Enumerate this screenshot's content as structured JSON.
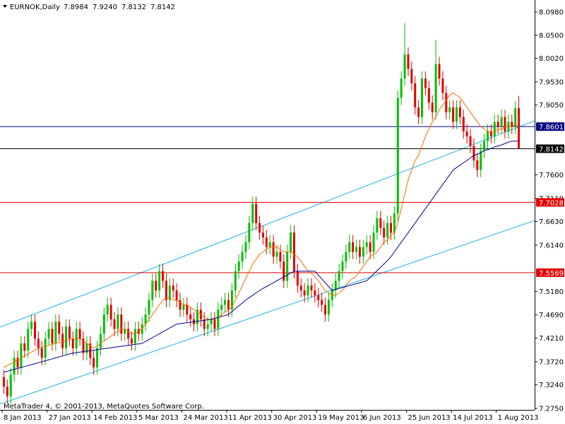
{
  "chart_data": {
    "type": "candlestick",
    "symbol": "EURNOK,Daily",
    "header_labels": [
      "7.8984",
      "7.9240",
      "7.8132",
      "7.8142"
    ],
    "footer": "MetaTrader 4, © 2001-2013, MetaQuotes Software Corp.",
    "up_color": "#00c000",
    "down_color": "#e00000",
    "grid": false,
    "categories": [
      "8 Jan 2013",
      null,
      null,
      null,
      null,
      null,
      null,
      null,
      null,
      null,
      null,
      null,
      null,
      "27 Jan 2013",
      null,
      null,
      null,
      null,
      null,
      null,
      null,
      null,
      null,
      null,
      null,
      null,
      "14 Feb 2013",
      null,
      null,
      null,
      null,
      null,
      null,
      null,
      null,
      null,
      null,
      null,
      null,
      "5 Mar 2013",
      null,
      null,
      null,
      null,
      null,
      null,
      null,
      null,
      null,
      null,
      null,
      null,
      "24 Mar 2013",
      null,
      null,
      null,
      null,
      null,
      null,
      null,
      null,
      null,
      null,
      null,
      null,
      "11 Apr 2013",
      null,
      null,
      null,
      null,
      null,
      null,
      null,
      null,
      null,
      null,
      null,
      null,
      "30 Apr 2013",
      null,
      null,
      null,
      null,
      null,
      null,
      null,
      null,
      null,
      null,
      null,
      null,
      "19 May 2013",
      null,
      null,
      null,
      null,
      null,
      null,
      null,
      null,
      null,
      null,
      null,
      null,
      "6 Jun 2013",
      null,
      null,
      null,
      null,
      null,
      null,
      null,
      null,
      null,
      null,
      null,
      null,
      "25 Jun 2013",
      null,
      null,
      null,
      null,
      null,
      null,
      null,
      null,
      null,
      null,
      null,
      null,
      "14 Jul 2013",
      null,
      null,
      null,
      null,
      null,
      null,
      null,
      null,
      null,
      null,
      null,
      null,
      "1 Aug 2013",
      null,
      null,
      null,
      null,
      null,
      null
    ],
    "open": [
      7.34,
      7.32,
      7.3,
      7.345,
      7.38,
      7.36,
      7.41,
      7.395,
      7.44,
      7.455,
      7.42,
      7.4,
      7.38,
      7.42,
      7.44,
      7.41,
      7.455,
      7.43,
      7.4,
      7.445,
      7.42,
      7.4,
      7.44,
      7.42,
      7.39,
      7.41,
      7.38,
      7.36,
      7.4,
      7.43,
      7.47,
      7.49,
      7.46,
      7.44,
      7.47,
      7.43,
      7.44,
      7.42,
      7.41,
      7.44,
      7.43,
      7.45,
      7.47,
      7.5,
      7.54,
      7.52,
      7.56,
      7.54,
      7.5,
      7.53,
      7.52,
      7.5,
      7.48,
      7.49,
      7.47,
      7.46,
      7.45,
      7.48,
      7.46,
      7.44,
      7.45,
      7.46,
      7.44,
      7.48,
      7.49,
      7.5,
      7.48,
      7.52,
      7.56,
      7.58,
      7.6,
      7.62,
      7.66,
      7.7,
      7.66,
      7.64,
      7.63,
      7.61,
      7.62,
      7.59,
      7.6,
      7.58,
      7.54,
      7.6,
      7.64,
      7.56,
      7.53,
      7.52,
      7.51,
      7.53,
      7.52,
      7.51,
      7.5,
      7.49,
      7.47,
      7.5,
      7.52,
      7.54,
      7.56,
      7.58,
      7.6,
      7.62,
      7.6,
      7.61,
      7.59,
      7.61,
      7.62,
      7.6,
      7.64,
      7.67,
      7.65,
      7.63,
      7.66,
      7.64,
      7.68,
      7.92,
      7.96,
      8.01,
      7.98,
      7.95,
      7.9,
      7.88,
      7.96,
      7.94,
      7.91,
      7.89,
      7.99,
      7.96,
      7.93,
      7.89,
      7.9,
      7.87,
      7.9,
      7.88,
      7.85,
      7.84,
      7.82,
      7.79,
      7.77,
      7.81,
      7.83,
      7.85,
      7.84,
      7.87,
      7.86,
      7.88,
      7.85,
      7.87,
      7.86,
      7.8984
    ],
    "high": [
      7.355,
      7.335,
      7.36,
      7.395,
      7.395,
      7.425,
      7.425,
      7.455,
      7.47,
      7.47,
      7.435,
      7.415,
      7.435,
      7.455,
      7.455,
      7.47,
      7.47,
      7.445,
      7.46,
      7.46,
      7.435,
      7.455,
      7.455,
      7.435,
      7.425,
      7.425,
      7.395,
      7.415,
      7.445,
      7.485,
      7.505,
      7.505,
      7.475,
      7.485,
      7.485,
      7.455,
      7.455,
      7.435,
      7.455,
      7.455,
      7.465,
      7.485,
      7.515,
      7.555,
      7.555,
      7.575,
      7.575,
      7.555,
      7.545,
      7.545,
      7.535,
      7.515,
      7.505,
      7.505,
      7.485,
      7.475,
      7.495,
      7.495,
      7.475,
      7.465,
      7.475,
      7.475,
      7.495,
      7.505,
      7.515,
      7.515,
      7.535,
      7.575,
      7.595,
      7.615,
      7.635,
      7.675,
      7.715,
      7.715,
      7.675,
      7.655,
      7.645,
      7.635,
      7.635,
      7.615,
      7.615,
      7.595,
      7.615,
      7.655,
      7.655,
      7.575,
      7.545,
      7.535,
      7.545,
      7.545,
      7.535,
      7.525,
      7.515,
      7.505,
      7.515,
      7.535,
      7.555,
      7.575,
      7.595,
      7.615,
      7.635,
      7.635,
      7.625,
      7.625,
      7.625,
      7.635,
      7.635,
      7.655,
      7.685,
      7.685,
      7.665,
      7.675,
      7.675,
      7.695,
      7.935,
      7.975,
      8.075,
      8.025,
      7.995,
      7.965,
      7.915,
      7.975,
      7.975,
      7.955,
      7.925,
      8.04,
      8.005,
      7.975,
      7.945,
      7.915,
      7.915,
      7.915,
      7.915,
      7.895,
      7.865,
      7.855,
      7.835,
      7.805,
      7.825,
      7.845,
      7.865,
      7.865,
      7.885,
      7.885,
      7.895,
      7.895,
      7.885,
      7.885,
      7.913,
      7.924
    ],
    "low": [
      7.305,
      7.285,
      7.285,
      7.33,
      7.345,
      7.345,
      7.38,
      7.38,
      7.425,
      7.405,
      7.385,
      7.365,
      7.365,
      7.405,
      7.395,
      7.395,
      7.415,
      7.385,
      7.385,
      7.405,
      7.385,
      7.385,
      7.405,
      7.375,
      7.375,
      7.365,
      7.345,
      7.345,
      7.385,
      7.415,
      7.455,
      7.445,
      7.425,
      7.425,
      7.415,
      7.415,
      7.405,
      7.395,
      7.395,
      7.415,
      7.415,
      7.435,
      7.455,
      7.485,
      7.505,
      7.505,
      7.525,
      7.485,
      7.485,
      7.505,
      7.485,
      7.465,
      7.465,
      7.455,
      7.445,
      7.435,
      7.435,
      7.445,
      7.425,
      7.425,
      7.435,
      7.425,
      7.425,
      7.465,
      7.475,
      7.465,
      7.465,
      7.505,
      7.545,
      7.565,
      7.585,
      7.605,
      7.645,
      7.645,
      7.625,
      7.615,
      7.595,
      7.595,
      7.575,
      7.575,
      7.565,
      7.525,
      7.525,
      7.585,
      7.545,
      7.515,
      7.505,
      7.495,
      7.495,
      7.505,
      7.495,
      7.485,
      7.475,
      7.455,
      7.455,
      7.485,
      7.505,
      7.525,
      7.545,
      7.565,
      7.585,
      7.585,
      7.585,
      7.575,
      7.575,
      7.595,
      7.585,
      7.585,
      7.625,
      7.635,
      7.615,
      7.615,
      7.625,
      7.625,
      7.665,
      7.905,
      7.945,
      7.965,
      7.935,
      7.885,
      7.865,
      7.865,
      7.925,
      7.895,
      7.875,
      7.875,
      7.945,
      7.915,
      7.875,
      7.875,
      7.855,
      7.855,
      7.865,
      7.835,
      7.825,
      7.805,
      7.775,
      7.755,
      7.755,
      7.795,
      7.815,
      7.825,
      7.825,
      7.845,
      7.845,
      7.835,
      7.835,
      7.845,
      7.845,
      7.8132
    ],
    "close": [
      7.32,
      7.3,
      7.345,
      7.38,
      7.36,
      7.41,
      7.395,
      7.44,
      7.455,
      7.42,
      7.4,
      7.38,
      7.42,
      7.44,
      7.41,
      7.455,
      7.43,
      7.4,
      7.445,
      7.42,
      7.4,
      7.44,
      7.42,
      7.39,
      7.41,
      7.38,
      7.36,
      7.4,
      7.43,
      7.47,
      7.49,
      7.46,
      7.44,
      7.47,
      7.43,
      7.44,
      7.42,
      7.41,
      7.44,
      7.43,
      7.45,
      7.47,
      7.5,
      7.54,
      7.52,
      7.56,
      7.54,
      7.5,
      7.53,
      7.52,
      7.5,
      7.48,
      7.49,
      7.47,
      7.46,
      7.45,
      7.48,
      7.46,
      7.44,
      7.45,
      7.46,
      7.44,
      7.48,
      7.49,
      7.5,
      7.48,
      7.52,
      7.56,
      7.58,
      7.6,
      7.62,
      7.66,
      7.7,
      7.66,
      7.64,
      7.63,
      7.61,
      7.62,
      7.59,
      7.6,
      7.58,
      7.54,
      7.6,
      7.64,
      7.56,
      7.53,
      7.52,
      7.51,
      7.53,
      7.52,
      7.51,
      7.5,
      7.49,
      7.47,
      7.5,
      7.52,
      7.54,
      7.56,
      7.58,
      7.6,
      7.62,
      7.6,
      7.61,
      7.59,
      7.61,
      7.62,
      7.6,
      7.64,
      7.67,
      7.65,
      7.63,
      7.66,
      7.64,
      7.68,
      7.92,
      7.96,
      8.01,
      7.98,
      7.95,
      7.9,
      7.88,
      7.96,
      7.94,
      7.91,
      7.89,
      7.99,
      7.96,
      7.93,
      7.89,
      7.9,
      7.87,
      7.9,
      7.88,
      7.85,
      7.84,
      7.82,
      7.79,
      7.77,
      7.81,
      7.83,
      7.85,
      7.84,
      7.87,
      7.86,
      7.88,
      7.85,
      7.87,
      7.86,
      7.898,
      7.8142
    ],
    "lines": [
      {
        "color": "#ff6a00",
        "values": [
          7.36,
          7.364,
          7.368,
          7.372,
          7.376,
          7.38,
          7.384,
          7.388,
          7.392,
          7.396,
          7.4,
          7.402,
          7.404,
          7.406,
          7.408,
          7.41,
          7.412,
          7.414,
          7.416,
          7.418,
          7.42,
          7.42,
          7.42,
          7.415,
          7.41,
          7.405,
          7.4,
          7.405,
          7.41,
          7.415,
          7.42,
          7.425,
          7.43,
          7.435,
          7.44,
          7.44,
          7.435,
          7.43,
          7.43,
          7.435,
          7.44,
          7.45,
          7.46,
          7.47,
          7.48,
          7.49,
          7.5,
          7.505,
          7.505,
          7.5,
          7.5,
          7.495,
          7.49,
          7.49,
          7.485,
          7.48,
          7.475,
          7.47,
          7.465,
          7.46,
          7.46,
          7.46,
          7.465,
          7.47,
          7.475,
          7.48,
          7.485,
          7.5,
          7.515,
          7.53,
          7.545,
          7.56,
          7.575,
          7.585,
          7.595,
          7.6,
          7.605,
          7.61,
          7.61,
          7.61,
          7.605,
          7.6,
          7.6,
          7.6,
          7.595,
          7.59,
          7.58,
          7.57,
          7.56,
          7.555,
          7.55,
          7.54,
          7.53,
          7.52,
          7.515,
          7.51,
          7.51,
          7.515,
          7.52,
          7.53,
          7.54,
          7.545,
          7.55,
          7.56,
          7.57,
          7.58,
          7.59,
          7.595,
          7.6,
          7.61,
          7.62,
          7.625,
          7.635,
          7.64,
          7.66,
          7.69,
          7.72,
          7.75,
          7.77,
          7.79,
          7.8,
          7.82,
          7.84,
          7.855,
          7.87,
          7.88,
          7.895,
          7.905,
          7.915,
          7.925,
          7.93,
          7.925,
          7.92,
          7.91,
          7.9,
          7.89,
          7.88,
          7.87,
          7.86,
          7.855,
          7.85,
          7.85,
          7.85,
          7.855,
          7.855,
          7.86,
          7.86,
          7.86,
          7.865,
          7.86
        ]
      },
      {
        "color": "#00008b",
        "values": [
          7.35,
          7.352,
          7.354,
          7.356,
          7.358,
          7.36,
          7.362,
          7.364,
          7.366,
          7.368,
          7.37,
          7.372,
          7.374,
          7.376,
          7.378,
          7.38,
          7.382,
          7.384,
          7.386,
          7.388,
          7.39,
          7.391,
          7.392,
          7.393,
          7.394,
          7.395,
          7.396,
          7.397,
          7.398,
          7.399,
          7.4,
          7.401,
          7.402,
          7.403,
          7.404,
          7.405,
          7.406,
          7.407,
          7.408,
          7.409,
          7.41,
          7.414,
          7.418,
          7.422,
          7.426,
          7.43,
          7.434,
          7.438,
          7.442,
          7.446,
          7.45,
          7.451,
          7.452,
          7.453,
          7.454,
          7.455,
          7.456,
          7.457,
          7.458,
          7.459,
          7.46,
          7.462,
          7.464,
          7.466,
          7.468,
          7.47,
          7.476,
          7.482,
          7.488,
          7.494,
          7.5,
          7.505,
          7.51,
          7.515,
          7.52,
          7.524,
          7.528,
          7.532,
          7.536,
          7.54,
          7.544,
          7.548,
          7.552,
          7.556,
          7.56,
          7.56,
          7.56,
          7.56,
          7.56,
          7.56,
          7.56,
          7.552,
          7.544,
          7.536,
          7.528,
          7.52,
          7.522,
          7.524,
          7.526,
          7.528,
          7.53,
          7.532,
          7.534,
          7.536,
          7.538,
          7.54,
          7.547,
          7.554,
          7.561,
          7.568,
          7.575,
          7.582,
          7.59,
          7.6,
          7.61,
          7.62,
          7.63,
          7.64,
          7.65,
          7.66,
          7.67,
          7.68,
          7.69,
          7.7,
          7.71,
          7.72,
          7.73,
          7.74,
          7.75,
          7.76,
          7.77,
          7.775,
          7.78,
          7.785,
          7.79,
          7.795,
          7.8,
          7.803,
          7.806,
          7.81,
          7.812,
          7.815,
          7.818,
          7.82,
          7.822,
          7.825,
          7.828,
          7.83,
          7.83,
          7.83
        ]
      }
    ],
    "trendlines": [
      {
        "color": "#1ab2e6",
        "values": [
          7.4436,
          7.872
        ]
      },
      {
        "color": "#1ab2e6",
        "values": [
          7.284,
          7.665
        ]
      }
    ],
    "hlines": [
      {
        "value": 7.8601,
        "color": "#000080"
      },
      {
        "value": 7.8142,
        "color": "#000000"
      },
      {
        "value": 7.7028,
        "color": "#e00000"
      },
      {
        "value": 7.5569,
        "color": "#e00000"
      }
    ],
    "ylim": [
      7.272,
      8.123
    ],
    "yticks": [
      {
        "value": 8.098,
        "label": "8.0980"
      },
      {
        "value": 8.05,
        "label": "8.0500"
      },
      {
        "value": 8.002,
        "label": "8.0020"
      },
      {
        "value": 7.953,
        "label": "7.9530"
      },
      {
        "value": 7.905,
        "label": "7.9050"
      },
      {
        "value": 7.76,
        "label": "7.7600"
      },
      {
        "value": 7.711,
        "label": "7.7110"
      },
      {
        "value": 7.663,
        "label": "7.6630"
      },
      {
        "value": 7.614,
        "label": "7.6140"
      },
      {
        "value": 7.518,
        "label": "7.5180"
      },
      {
        "value": 7.469,
        "label": "7.4690"
      },
      {
        "value": 7.421,
        "label": "7.4210"
      },
      {
        "value": 7.372,
        "label": "7.3720"
      },
      {
        "value": 7.324,
        "label": "7.3240"
      },
      {
        "value": 7.275,
        "label": "7.2750"
      }
    ]
  }
}
